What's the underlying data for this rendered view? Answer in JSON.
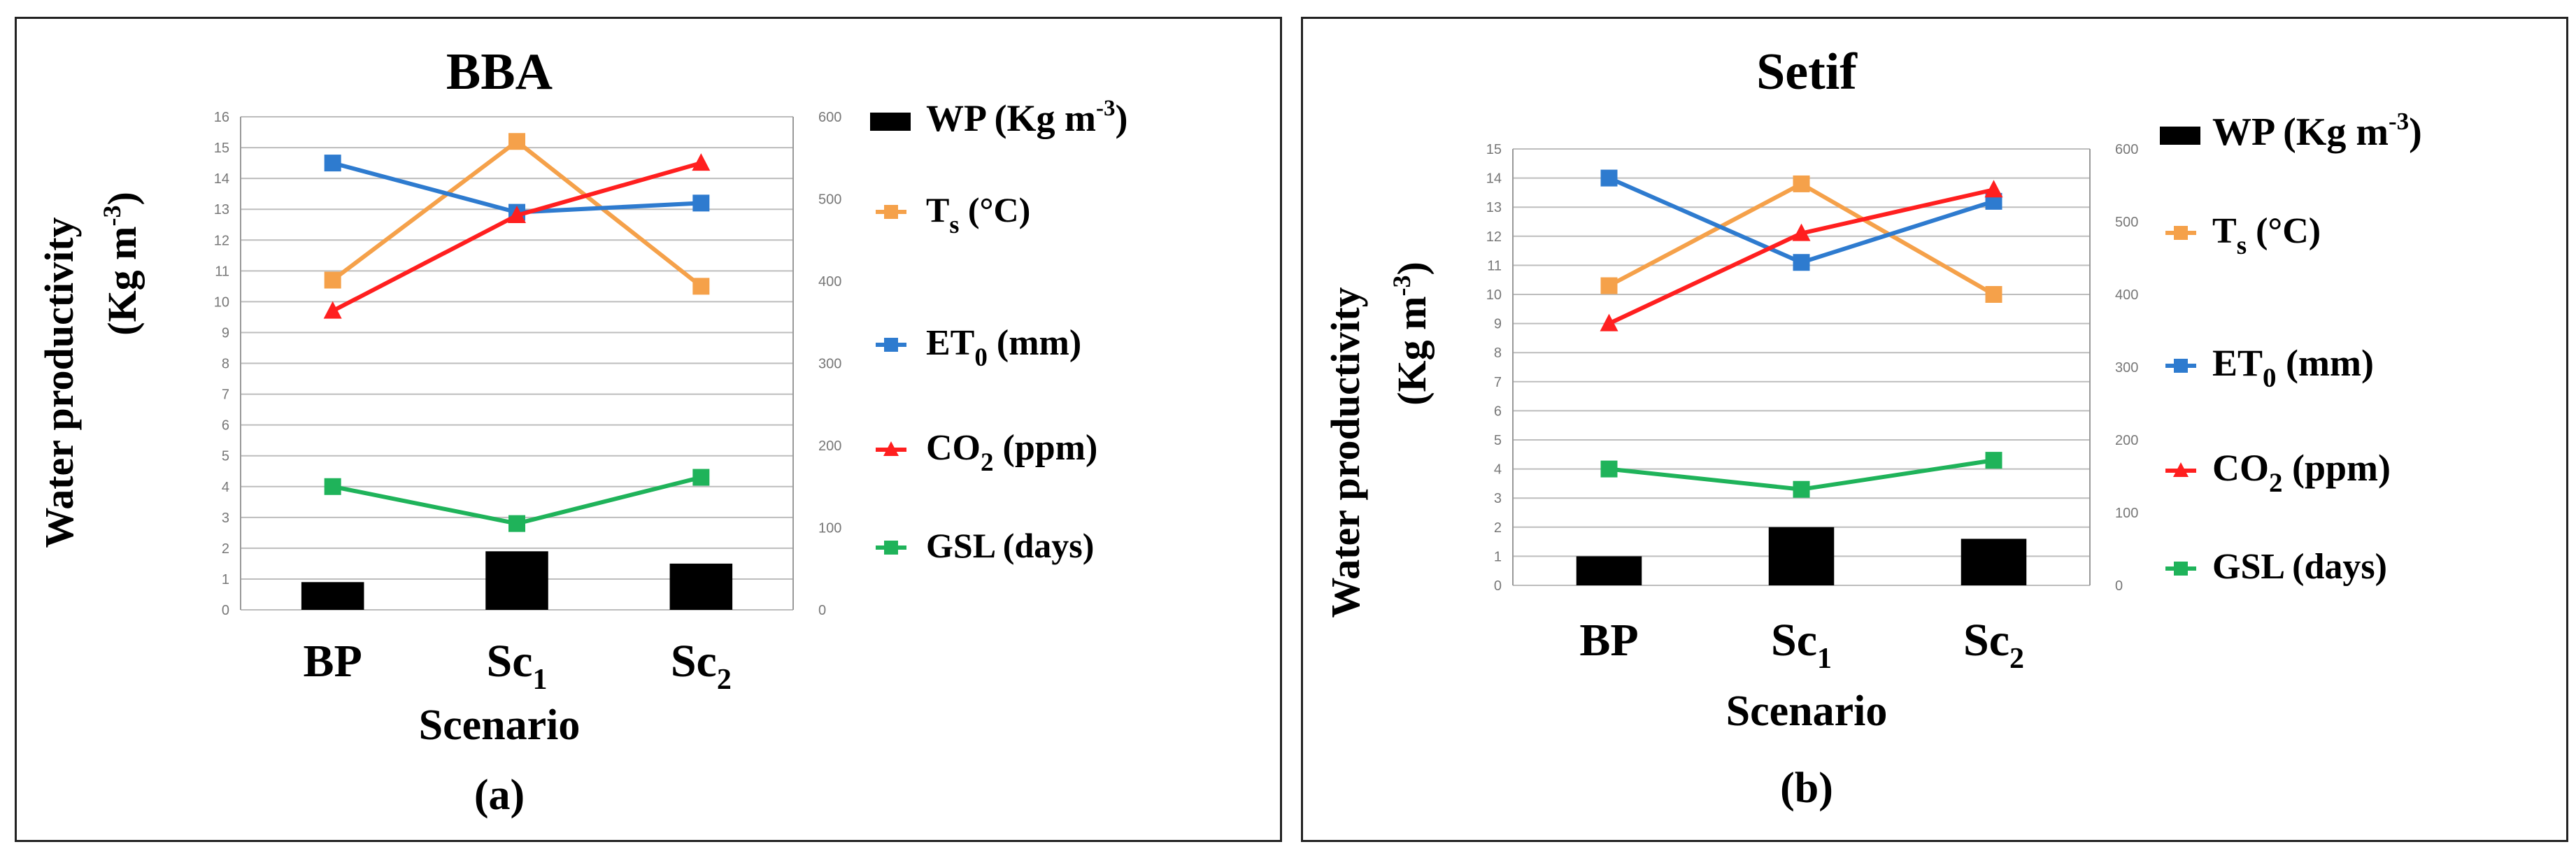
{
  "chart_data": [
    {
      "type": "bar+line",
      "panel_label": "(a)",
      "title": "BBA",
      "xlabel": "Scenario",
      "ylabel": "Water productivity",
      "ylabel_unit_base": "(Kg m",
      "ylabel_unit_sup": "-3",
      "ylabel_unit_close": ")",
      "categories": [
        {
          "base": "BP",
          "sub": ""
        },
        {
          "base": "Sc",
          "sub": "1"
        },
        {
          "base": "Sc",
          "sub": "2"
        }
      ],
      "ylim_left": [
        0,
        16
      ],
      "ylim_right": [
        0,
        600
      ],
      "left_ticks": [
        "0",
        "1",
        "2",
        "3",
        "4",
        "5",
        "6",
        "7",
        "8",
        "9",
        "10",
        "11",
        "12",
        "13",
        "14",
        "15",
        "16"
      ],
      "right_ticks": [
        "0",
        "100",
        "200",
        "300",
        "400",
        "500",
        "600"
      ],
      "grid": true,
      "bar_series": {
        "name": "WP",
        "color": "#000000",
        "values": [
          0.9,
          1.9,
          1.5
        ]
      },
      "line_series": [
        {
          "name": "Ts",
          "color": "#f5a14a",
          "values": [
            10.7,
            15.2,
            10.5
          ],
          "marker": "square"
        },
        {
          "name": "ET0",
          "color": "#2e7bcf",
          "values": [
            14.5,
            12.9,
            13.2
          ],
          "marker": "square"
        },
        {
          "name": "CO2",
          "color": "#ff1f1f",
          "values": [
            9.7,
            12.8,
            14.5
          ],
          "marker": "triangle"
        },
        {
          "name": "GSL",
          "color": "#1fb35a",
          "values": [
            4.0,
            2.8,
            4.3
          ],
          "marker": "square"
        }
      ],
      "legend": [
        {
          "base": "WP (Kg m",
          "sup": "-3",
          "sub": "",
          "rest": ")"
        },
        {
          "base": "T",
          "sup": "",
          "sub": "s",
          "rest": "  (°C)"
        },
        {
          "base": "ET",
          "sup": "",
          "sub": "0",
          "rest": " (mm)"
        },
        {
          "base": "CO",
          "sup": "",
          "sub": "2",
          "rest": " (ppm)"
        },
        {
          "base": "GSL  (days)",
          "sup": "",
          "sub": "",
          "rest": ""
        }
      ]
    },
    {
      "type": "bar+line",
      "panel_label": "(b)",
      "title": "Setif",
      "xlabel": "Scenario",
      "ylabel": "Water productivity",
      "ylabel_unit_base": "(Kg m",
      "ylabel_unit_sup": "-3",
      "ylabel_unit_close": ")",
      "categories": [
        {
          "base": "BP",
          "sub": ""
        },
        {
          "base": "Sc",
          "sub": "1"
        },
        {
          "base": "Sc",
          "sub": "2"
        }
      ],
      "ylim_left": [
        0,
        15
      ],
      "ylim_right": [
        0,
        600
      ],
      "left_ticks": [
        "0",
        "1",
        "2",
        "3",
        "4",
        "5",
        "6",
        "7",
        "8",
        "9",
        "10",
        "11",
        "12",
        "13",
        "14",
        "15"
      ],
      "right_ticks": [
        "0",
        "100",
        "200",
        "300",
        "400",
        "500",
        "600"
      ],
      "grid": true,
      "bar_series": {
        "name": "WP",
        "color": "#000000",
        "values": [
          1.0,
          2.0,
          1.6
        ]
      },
      "line_series": [
        {
          "name": "Ts",
          "color": "#f5a14a",
          "values": [
            10.3,
            13.8,
            10.0
          ],
          "marker": "square"
        },
        {
          "name": "ET0",
          "color": "#2e7bcf",
          "values": [
            14.0,
            11.1,
            13.2
          ],
          "marker": "square"
        },
        {
          "name": "CO2",
          "color": "#ff1f1f",
          "values": [
            9.0,
            12.1,
            13.6
          ],
          "marker": "triangle"
        },
        {
          "name": "GSL",
          "color": "#1fb35a",
          "values": [
            4.0,
            3.3,
            4.3
          ],
          "marker": "square"
        }
      ],
      "legend": [
        {
          "base": "WP (Kg m",
          "sup": "-3",
          "sub": "",
          "rest": ")"
        },
        {
          "base": "T",
          "sup": "",
          "sub": "s",
          "rest": "  (°C)"
        },
        {
          "base": "ET",
          "sup": "",
          "sub": "0",
          "rest": " (mm)"
        },
        {
          "base": "CO",
          "sup": "",
          "sub": "2",
          "rest": "  (ppm)"
        },
        {
          "base": "GSL  (days)",
          "sup": "",
          "sub": "",
          "rest": ""
        }
      ]
    }
  ]
}
